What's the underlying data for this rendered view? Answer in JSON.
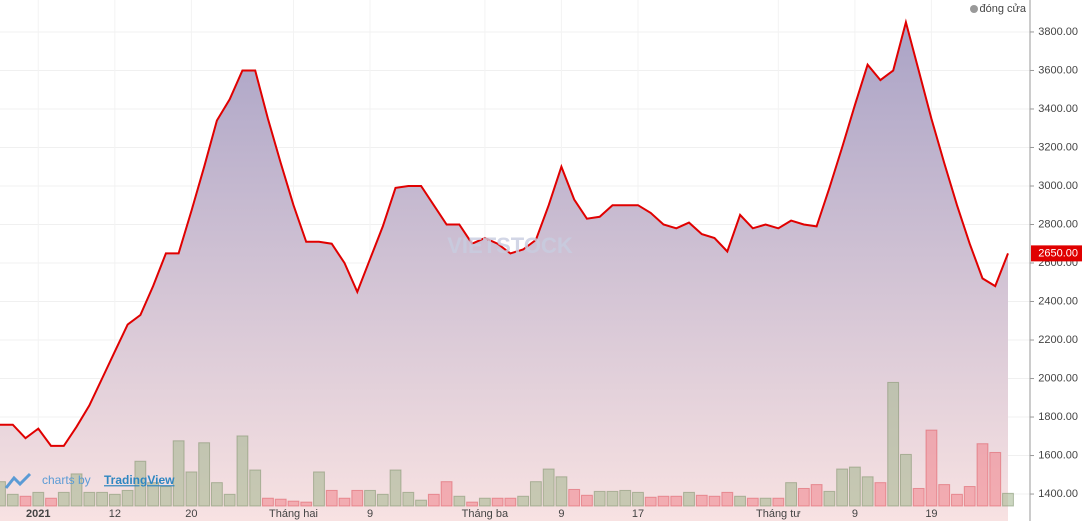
{
  "chart_data": {
    "type": "area",
    "legend": "đóng cửa",
    "legend_position": "top-right",
    "watermark": "VIETSTOCK",
    "credit": "charts by",
    "credit_link": "TradingView",
    "color": "#e00000",
    "grid": true,
    "categories": [
      null,
      null,
      null,
      "2021",
      null,
      null,
      null,
      null,
      null,
      "12",
      null,
      null,
      null,
      null,
      null,
      "20",
      null,
      null,
      null,
      null,
      null,
      null,
      null,
      "Tháng hai",
      null,
      null,
      null,
      null,
      null,
      "9",
      null,
      null,
      null,
      null,
      null,
      null,
      null,
      null,
      "Tháng ba",
      null,
      null,
      null,
      null,
      null,
      "9",
      null,
      null,
      null,
      null,
      null,
      "17",
      null,
      null,
      null,
      null,
      null,
      null,
      null,
      null,
      null,
      null,
      "Tháng tư",
      null,
      null,
      null,
      null,
      null,
      "9",
      null,
      null,
      null,
      null,
      null,
      "19",
      null,
      null,
      null,
      null,
      null,
      null
    ],
    "values": [
      1760,
      1760,
      1690,
      1740,
      1650,
      1650,
      1750,
      1860,
      2000,
      2140,
      2280,
      2330,
      2480,
      2650,
      2650,
      2870,
      3100,
      3340,
      3450,
      3600,
      3600,
      3350,
      3120,
      2900,
      2710,
      2710,
      2700,
      2600,
      2450,
      2620,
      2790,
      2990,
      3000,
      3000,
      2900,
      2800,
      2800,
      2700,
      2730,
      2700,
      2650,
      2670,
      2720,
      2900,
      3100,
      2930,
      2830,
      2840,
      2900,
      2900,
      2900,
      2860,
      2800,
      2780,
      2810,
      2750,
      2730,
      2660,
      2850,
      2780,
      2800,
      2780,
      2820,
      2800,
      2790,
      2990,
      3200,
      3420,
      3630,
      3550,
      3600,
      3850,
      3600,
      3350,
      3120,
      2900,
      2700,
      2520,
      2480,
      2650
    ],
    "volume": [
      25,
      12,
      10,
      14,
      8,
      14,
      33,
      14,
      14,
      12,
      16,
      46,
      24,
      20,
      67,
      35,
      65,
      24,
      12,
      72,
      37,
      8,
      7,
      5,
      4,
      35,
      16,
      8,
      16,
      16,
      12,
      37,
      14,
      6,
      12,
      25,
      10,
      4,
      8,
      8,
      8,
      10,
      25,
      38,
      30,
      17,
      11,
      15,
      15,
      16,
      14,
      9,
      10,
      10,
      14,
      11,
      10,
      14,
      10,
      8,
      8,
      8,
      24,
      18,
      22,
      15,
      38,
      40,
      30,
      24,
      127,
      53,
      18,
      78,
      22,
      12,
      20,
      64,
      55,
      13
    ],
    "volume_lim": [
      0,
      520
    ],
    "last_price": {
      "value": 2650,
      "label": "2650.00"
    },
    "ylim": [
      1260,
      3966
    ],
    "yticks": [
      {
        "value": 1400,
        "label": "1400.00"
      },
      {
        "value": 1600,
        "label": "1600.00"
      },
      {
        "value": 1800,
        "label": "1800.00"
      },
      {
        "value": 2000,
        "label": "2000.00"
      },
      {
        "value": 2200,
        "label": "2200.00"
      },
      {
        "value": 2400,
        "label": "2400.00"
      },
      {
        "value": 2600,
        "label": "2600.00"
      },
      {
        "value": 2800,
        "label": "2800.00"
      },
      {
        "value": 3000,
        "label": "3000.00"
      },
      {
        "value": 3200,
        "label": "3200.00"
      },
      {
        "value": 3400,
        "label": "3400.00"
      },
      {
        "value": 3600,
        "label": "3600.00"
      },
      {
        "value": 3800,
        "label": "3800.00"
      }
    ]
  }
}
